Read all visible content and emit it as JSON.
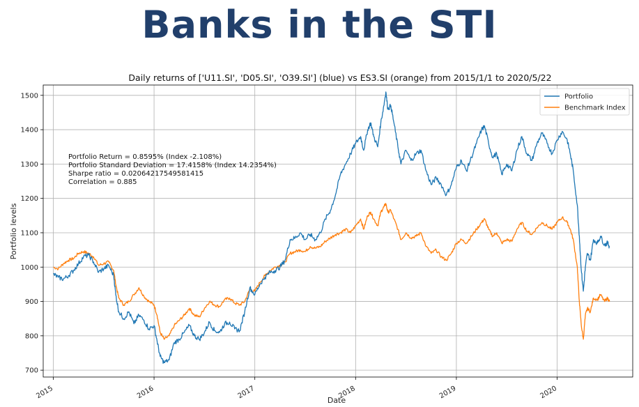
{
  "header": {
    "title": "Banks in the STI"
  },
  "chart_data": {
    "type": "line",
    "title": "Daily returns of ['U11.SI', 'D05.SI', 'O39.SI'] (blue) vs ES3.SI (orange) from 2015/1/1 to 2020/5/22",
    "xlabel": "Date",
    "ylabel": "Portfolio levels",
    "xlim": [
      2014.9,
      2020.75
    ],
    "ylim": [
      680,
      1530
    ],
    "x_ticks": [
      "2015",
      "2016",
      "2017",
      "2018",
      "2019",
      "2020"
    ],
    "y_ticks": [
      700,
      800,
      900,
      1000,
      1100,
      1200,
      1300,
      1400,
      1500
    ],
    "grid": true,
    "legend_position": "top-right",
    "annotations": [
      "Portfolio Return = 0.8595% (Index -2.108%)",
      "Portfolio Standard Deviation = 17.4158% (Index 14.2354%)",
      "Sharpe ratio = 0.02064217549581415",
      "Correlation = 0.885"
    ],
    "series": [
      {
        "name": "Portfolio",
        "color": "#1f77b4",
        "points": [
          [
            2015.0,
            980
          ],
          [
            2015.05,
            970
          ],
          [
            2015.1,
            965
          ],
          [
            2015.15,
            975
          ],
          [
            2015.2,
            990
          ],
          [
            2015.25,
            1010
          ],
          [
            2015.3,
            1030
          ],
          [
            2015.35,
            1035
          ],
          [
            2015.4,
            1015
          ],
          [
            2015.45,
            985
          ],
          [
            2015.5,
            995
          ],
          [
            2015.55,
            1005
          ],
          [
            2015.6,
            975
          ],
          [
            2015.62,
            920
          ],
          [
            2015.65,
            870
          ],
          [
            2015.7,
            850
          ],
          [
            2015.75,
            870
          ],
          [
            2015.8,
            835
          ],
          [
            2015.85,
            860
          ],
          [
            2015.9,
            845
          ],
          [
            2015.95,
            820
          ],
          [
            2016.0,
            830
          ],
          [
            2016.03,
            785
          ],
          [
            2016.06,
            740
          ],
          [
            2016.1,
            722
          ],
          [
            2016.15,
            730
          ],
          [
            2016.2,
            780
          ],
          [
            2016.25,
            790
          ],
          [
            2016.3,
            810
          ],
          [
            2016.35,
            830
          ],
          [
            2016.4,
            800
          ],
          [
            2016.45,
            790
          ],
          [
            2016.5,
            810
          ],
          [
            2016.55,
            840
          ],
          [
            2016.6,
            815
          ],
          [
            2016.65,
            810
          ],
          [
            2016.7,
            835
          ],
          [
            2016.75,
            840
          ],
          [
            2016.8,
            820
          ],
          [
            2016.85,
            815
          ],
          [
            2016.9,
            870
          ],
          [
            2016.95,
            940
          ],
          [
            2017.0,
            920
          ],
          [
            2017.05,
            950
          ],
          [
            2017.1,
            970
          ],
          [
            2017.15,
            985
          ],
          [
            2017.2,
            990
          ],
          [
            2017.25,
            1000
          ],
          [
            2017.3,
            1020
          ],
          [
            2017.35,
            1080
          ],
          [
            2017.4,
            1085
          ],
          [
            2017.45,
            1100
          ],
          [
            2017.5,
            1080
          ],
          [
            2017.55,
            1095
          ],
          [
            2017.6,
            1080
          ],
          [
            2017.65,
            1100
          ],
          [
            2017.7,
            1140
          ],
          [
            2017.75,
            1165
          ],
          [
            2017.8,
            1210
          ],
          [
            2017.85,
            1270
          ],
          [
            2017.9,
            1300
          ],
          [
            2017.95,
            1330
          ],
          [
            2018.0,
            1360
          ],
          [
            2018.05,
            1380
          ],
          [
            2018.08,
            1340
          ],
          [
            2018.12,
            1400
          ],
          [
            2018.15,
            1420
          ],
          [
            2018.18,
            1380
          ],
          [
            2018.22,
            1350
          ],
          [
            2018.25,
            1420
          ],
          [
            2018.28,
            1470
          ],
          [
            2018.3,
            1510
          ],
          [
            2018.32,
            1460
          ],
          [
            2018.35,
            1470
          ],
          [
            2018.38,
            1420
          ],
          [
            2018.42,
            1350
          ],
          [
            2018.45,
            1300
          ],
          [
            2018.5,
            1340
          ],
          [
            2018.55,
            1310
          ],
          [
            2018.6,
            1330
          ],
          [
            2018.65,
            1340
          ],
          [
            2018.7,
            1280
          ],
          [
            2018.75,
            1240
          ],
          [
            2018.8,
            1260
          ],
          [
            2018.85,
            1240
          ],
          [
            2018.9,
            1210
          ],
          [
            2018.95,
            1240
          ],
          [
            2019.0,
            1290
          ],
          [
            2019.05,
            1310
          ],
          [
            2019.1,
            1280
          ],
          [
            2019.15,
            1320
          ],
          [
            2019.2,
            1360
          ],
          [
            2019.25,
            1400
          ],
          [
            2019.28,
            1410
          ],
          [
            2019.32,
            1360
          ],
          [
            2019.36,
            1320
          ],
          [
            2019.4,
            1330
          ],
          [
            2019.45,
            1270
          ],
          [
            2019.5,
            1300
          ],
          [
            2019.55,
            1280
          ],
          [
            2019.6,
            1340
          ],
          [
            2019.65,
            1380
          ],
          [
            2019.7,
            1330
          ],
          [
            2019.75,
            1310
          ],
          [
            2019.8,
            1360
          ],
          [
            2019.85,
            1390
          ],
          [
            2019.9,
            1360
          ],
          [
            2019.95,
            1330
          ],
          [
            2020.0,
            1370
          ],
          [
            2020.05,
            1395
          ],
          [
            2020.1,
            1370
          ],
          [
            2020.13,
            1330
          ],
          [
            2020.16,
            1280
          ],
          [
            2020.2,
            1180
          ],
          [
            2020.22,
            1090
          ],
          [
            2020.24,
            990
          ],
          [
            2020.26,
            930
          ],
          [
            2020.28,
            1000
          ],
          [
            2020.3,
            1040
          ],
          [
            2020.33,
            1020
          ],
          [
            2020.36,
            1080
          ],
          [
            2020.4,
            1070
          ],
          [
            2020.43,
            1090
          ],
          [
            2020.47,
            1065
          ],
          [
            2020.5,
            1070
          ],
          [
            2020.52,
            1060
          ]
        ]
      },
      {
        "name": "Benchmark Index",
        "color": "#ff7f0e",
        "points": [
          [
            2015.0,
            1000
          ],
          [
            2015.05,
            995
          ],
          [
            2015.1,
            1010
          ],
          [
            2015.15,
            1020
          ],
          [
            2015.2,
            1025
          ],
          [
            2015.25,
            1040
          ],
          [
            2015.3,
            1045
          ],
          [
            2015.35,
            1040
          ],
          [
            2015.4,
            1030
          ],
          [
            2015.45,
            1005
          ],
          [
            2015.5,
            1010
          ],
          [
            2015.55,
            1015
          ],
          [
            2015.6,
            990
          ],
          [
            2015.62,
            950
          ],
          [
            2015.65,
            910
          ],
          [
            2015.7,
            890
          ],
          [
            2015.75,
            900
          ],
          [
            2015.8,
            920
          ],
          [
            2015.85,
            940
          ],
          [
            2015.9,
            915
          ],
          [
            2015.95,
            900
          ],
          [
            2016.0,
            890
          ],
          [
            2016.03,
            860
          ],
          [
            2016.06,
            810
          ],
          [
            2016.1,
            790
          ],
          [
            2016.15,
            800
          ],
          [
            2016.2,
            830
          ],
          [
            2016.25,
            845
          ],
          [
            2016.3,
            860
          ],
          [
            2016.35,
            880
          ],
          [
            2016.4,
            860
          ],
          [
            2016.45,
            855
          ],
          [
            2016.5,
            880
          ],
          [
            2016.55,
            900
          ],
          [
            2016.6,
            890
          ],
          [
            2016.65,
            885
          ],
          [
            2016.7,
            905
          ],
          [
            2016.75,
            910
          ],
          [
            2016.8,
            895
          ],
          [
            2016.85,
            890
          ],
          [
            2016.9,
            900
          ],
          [
            2016.95,
            935
          ],
          [
            2017.0,
            930
          ],
          [
            2017.05,
            955
          ],
          [
            2017.1,
            975
          ],
          [
            2017.15,
            990
          ],
          [
            2017.2,
            1000
          ],
          [
            2017.25,
            1005
          ],
          [
            2017.3,
            1015
          ],
          [
            2017.35,
            1040
          ],
          [
            2017.4,
            1045
          ],
          [
            2017.45,
            1050
          ],
          [
            2017.5,
            1045
          ],
          [
            2017.55,
            1060
          ],
          [
            2017.6,
            1055
          ],
          [
            2017.65,
            1060
          ],
          [
            2017.7,
            1075
          ],
          [
            2017.75,
            1085
          ],
          [
            2017.8,
            1095
          ],
          [
            2017.85,
            1100
          ],
          [
            2017.9,
            1110
          ],
          [
            2017.95,
            1100
          ],
          [
            2018.0,
            1120
          ],
          [
            2018.05,
            1140
          ],
          [
            2018.08,
            1110
          ],
          [
            2018.12,
            1150
          ],
          [
            2018.15,
            1160
          ],
          [
            2018.18,
            1140
          ],
          [
            2018.22,
            1120
          ],
          [
            2018.25,
            1160
          ],
          [
            2018.28,
            1175
          ],
          [
            2018.3,
            1185
          ],
          [
            2018.32,
            1160
          ],
          [
            2018.35,
            1165
          ],
          [
            2018.38,
            1140
          ],
          [
            2018.42,
            1110
          ],
          [
            2018.45,
            1080
          ],
          [
            2018.5,
            1100
          ],
          [
            2018.55,
            1085
          ],
          [
            2018.6,
            1090
          ],
          [
            2018.65,
            1100
          ],
          [
            2018.7,
            1060
          ],
          [
            2018.75,
            1040
          ],
          [
            2018.8,
            1050
          ],
          [
            2018.85,
            1030
          ],
          [
            2018.9,
            1020
          ],
          [
            2018.95,
            1040
          ],
          [
            2019.0,
            1070
          ],
          [
            2019.05,
            1080
          ],
          [
            2019.1,
            1070
          ],
          [
            2019.15,
            1090
          ],
          [
            2019.2,
            1110
          ],
          [
            2019.25,
            1130
          ],
          [
            2019.28,
            1140
          ],
          [
            2019.32,
            1110
          ],
          [
            2019.36,
            1090
          ],
          [
            2019.4,
            1100
          ],
          [
            2019.45,
            1070
          ],
          [
            2019.5,
            1080
          ],
          [
            2019.55,
            1075
          ],
          [
            2019.6,
            1110
          ],
          [
            2019.65,
            1130
          ],
          [
            2019.7,
            1105
          ],
          [
            2019.75,
            1095
          ],
          [
            2019.8,
            1115
          ],
          [
            2019.85,
            1130
          ],
          [
            2019.9,
            1120
          ],
          [
            2019.95,
            1110
          ],
          [
            2020.0,
            1130
          ],
          [
            2020.05,
            1145
          ],
          [
            2020.1,
            1130
          ],
          [
            2020.13,
            1110
          ],
          [
            2020.16,
            1080
          ],
          [
            2020.2,
            1000
          ],
          [
            2020.22,
            900
          ],
          [
            2020.24,
            830
          ],
          [
            2020.26,
            790
          ],
          [
            2020.28,
            860
          ],
          [
            2020.3,
            880
          ],
          [
            2020.33,
            870
          ],
          [
            2020.36,
            910
          ],
          [
            2020.4,
            905
          ],
          [
            2020.43,
            920
          ],
          [
            2020.47,
            900
          ],
          [
            2020.5,
            910
          ],
          [
            2020.52,
            900
          ]
        ]
      }
    ]
  }
}
